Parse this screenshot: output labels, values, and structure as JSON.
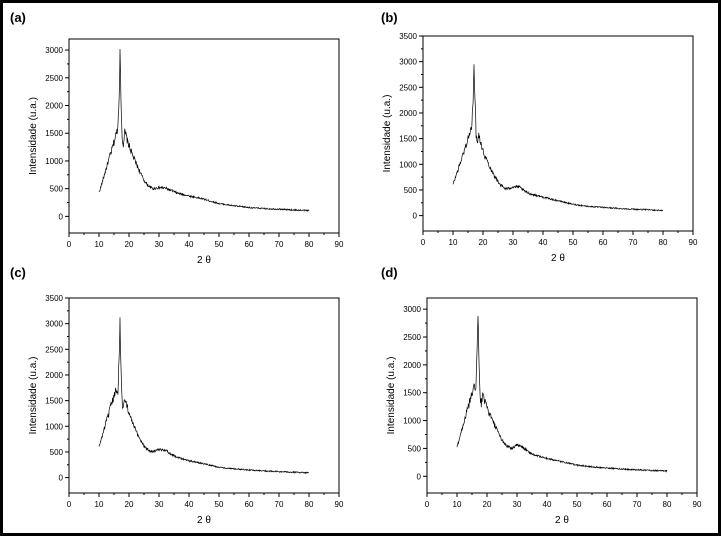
{
  "chart_data": [
    {
      "type": "line",
      "panel_label": "(a)",
      "xlabel": "2 θ",
      "ylabel": "Intensidade (u.a.)",
      "xlim": [
        0,
        90
      ],
      "ylim": [
        -300,
        3200
      ],
      "xticks": [
        0,
        10,
        20,
        30,
        40,
        50,
        60,
        70,
        80,
        90
      ],
      "yticks": [
        0,
        500,
        1000,
        1500,
        2000,
        2500,
        3000
      ],
      "grid": false,
      "series": [
        {
          "x": [
            10,
            11,
            12,
            13,
            14,
            15,
            15.8,
            16.3,
            16.7,
            17.0,
            17.3,
            17.7,
            18.1,
            18.6,
            19.0,
            19.5,
            20,
            21,
            22,
            23,
            24,
            25,
            26,
            27,
            28,
            30,
            32,
            34,
            36,
            40,
            45,
            50,
            55,
            60,
            65,
            70,
            75,
            80
          ],
          "y": [
            430,
            600,
            790,
            980,
            1150,
            1340,
            1500,
            1620,
            2200,
            2920,
            2200,
            1420,
            1300,
            1520,
            1460,
            1350,
            1280,
            1130,
            1000,
            880,
            760,
            650,
            580,
            530,
            500,
            520,
            510,
            470,
            420,
            370,
            310,
            230,
            190,
            160,
            140,
            130,
            115,
            105
          ]
        }
      ]
    },
    {
      "type": "line",
      "panel_label": "(b)",
      "xlabel": "2 θ",
      "ylabel": "Intensidade (u.a.)",
      "xlim": [
        0,
        90
      ],
      "ylim": [
        -300,
        3500
      ],
      "xticks": [
        0,
        10,
        20,
        30,
        40,
        50,
        60,
        70,
        80,
        90
      ],
      "yticks": [
        0,
        500,
        1000,
        1500,
        2000,
        2500,
        3000,
        3500
      ],
      "grid": false,
      "series": [
        {
          "x": [
            10,
            11,
            12,
            13,
            14,
            15,
            15.8,
            16.3,
            16.7,
            17.0,
            17.3,
            17.7,
            18.1,
            18.6,
            19.0,
            19.5,
            20,
            21,
            22,
            23,
            24,
            25,
            26,
            27,
            28,
            30,
            32,
            34,
            36,
            40,
            45,
            50,
            55,
            60,
            65,
            70,
            75,
            80
          ],
          "y": [
            600,
            780,
            950,
            1130,
            1310,
            1500,
            1650,
            1720,
            2300,
            3100,
            2300,
            1580,
            1450,
            1580,
            1500,
            1380,
            1250,
            1120,
            990,
            860,
            760,
            660,
            590,
            540,
            520,
            560,
            560,
            470,
            420,
            360,
            290,
            220,
            180,
            160,
            140,
            125,
            115,
            100
          ]
        }
      ]
    },
    {
      "type": "line",
      "panel_label": "(c)",
      "xlabel": "2 θ",
      "ylabel": "Intensidade (u.a.)",
      "xlim": [
        0,
        90
      ],
      "ylim": [
        -300,
        3500
      ],
      "xticks": [
        0,
        10,
        20,
        30,
        40,
        50,
        60,
        70,
        80,
        90
      ],
      "yticks": [
        0,
        500,
        1000,
        1500,
        2000,
        2500,
        3000,
        3500
      ],
      "grid": false,
      "series": [
        {
          "x": [
            10,
            11,
            12,
            13,
            14,
            15,
            15.8,
            16.3,
            16.7,
            17.0,
            17.3,
            17.7,
            18.1,
            18.6,
            19.0,
            19.5,
            20,
            21,
            22,
            23,
            24,
            25,
            26,
            27,
            28,
            30,
            32,
            34,
            36,
            40,
            45,
            50,
            55,
            60,
            65,
            70,
            75,
            80
          ],
          "y": [
            600,
            800,
            1000,
            1200,
            1400,
            1580,
            1720,
            1700,
            2300,
            3050,
            2200,
            1460,
            1330,
            1580,
            1500,
            1380,
            1240,
            1100,
            950,
            820,
            720,
            620,
            560,
            520,
            510,
            540,
            540,
            460,
            400,
            330,
            270,
            200,
            170,
            150,
            130,
            115,
            105,
            95
          ]
        }
      ]
    },
    {
      "type": "line",
      "panel_label": "(d)",
      "xlabel": "2 θ",
      "ylabel": "Intensidade (u.a.)",
      "xlim": [
        0,
        90
      ],
      "ylim": [
        -300,
        3200
      ],
      "xticks": [
        0,
        10,
        20,
        30,
        40,
        50,
        60,
        70,
        80,
        90
      ],
      "yticks": [
        0,
        500,
        1000,
        1500,
        2000,
        2500,
        3000
      ],
      "grid": false,
      "series": [
        {
          "x": [
            10,
            11,
            12,
            13,
            14,
            15,
            15.8,
            16.3,
            16.7,
            17.0,
            17.3,
            17.7,
            18.1,
            18.6,
            19.0,
            19.5,
            20,
            21,
            22,
            23,
            24,
            25,
            26,
            27,
            28,
            30,
            32,
            34,
            36,
            40,
            45,
            50,
            55,
            60,
            65,
            70,
            75,
            80
          ],
          "y": [
            520,
            720,
            920,
            1100,
            1300,
            1480,
            1600,
            1620,
            2200,
            2920,
            2100,
            1400,
            1300,
            1480,
            1420,
            1300,
            1220,
            1100,
            980,
            860,
            750,
            650,
            580,
            530,
            500,
            560,
            520,
            430,
            380,
            320,
            260,
            200,
            170,
            150,
            130,
            115,
            105,
            95
          ]
        }
      ]
    }
  ]
}
